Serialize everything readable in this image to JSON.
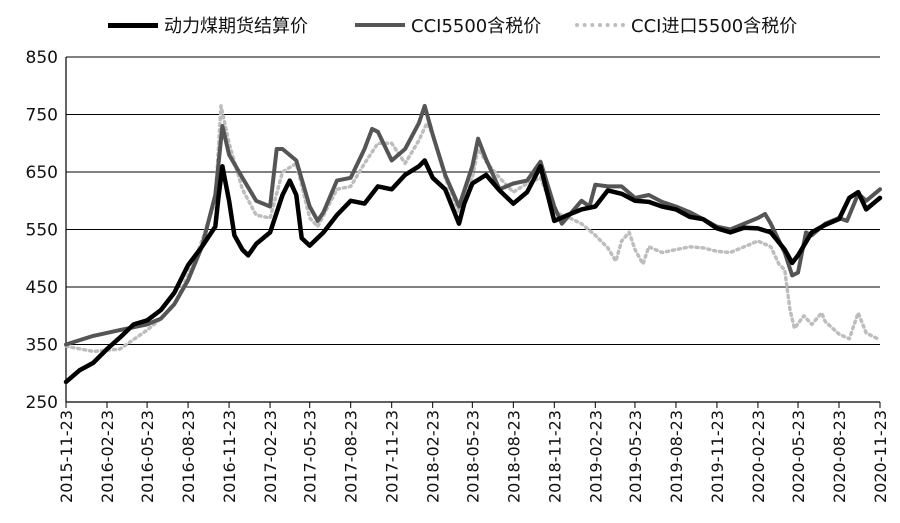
{
  "chart_data": {
    "type": "line",
    "title": "",
    "xlabel": "",
    "ylabel": "",
    "ylim": [
      250,
      850
    ],
    "yticks": [
      250,
      350,
      450,
      550,
      650,
      750,
      850
    ],
    "xlim": [
      "2015-11-23",
      "2020-11-23"
    ],
    "xticks": [
      "2015-11-23",
      "2016-02-23",
      "2016-05-23",
      "2016-08-23",
      "2016-11-23",
      "2017-02-23",
      "2017-05-23",
      "2017-08-23",
      "2017-11-23",
      "2018-02-23",
      "2018-05-23",
      "2018-08-23",
      "2018-11-23",
      "2019-02-23",
      "2019-05-23",
      "2019-08-23",
      "2019-11-23",
      "2020-02-23",
      "2020-05-23",
      "2020-08-23",
      "2020-11-23"
    ],
    "grid": "horizontal",
    "legend": "top",
    "series": [
      {
        "name": "动力煤期货结算价",
        "color": "#000000",
        "style": "solid-thick",
        "points": [
          [
            "2015-11-23",
            285
          ],
          [
            "2015-12-23",
            305
          ],
          [
            "2016-01-23",
            318
          ],
          [
            "2016-02-23",
            342
          ],
          [
            "2016-03-23",
            362
          ],
          [
            "2016-04-23",
            385
          ],
          [
            "2016-05-23",
            392
          ],
          [
            "2016-06-23",
            410
          ],
          [
            "2016-07-23",
            440
          ],
          [
            "2016-08-23",
            488
          ],
          [
            "2016-09-23",
            520
          ],
          [
            "2016-10-23",
            555
          ],
          [
            "2016-10-30",
            605
          ],
          [
            "2016-11-08",
            660
          ],
          [
            "2016-11-13",
            640
          ],
          [
            "2016-11-23",
            600
          ],
          [
            "2016-12-05",
            540
          ],
          [
            "2016-12-23",
            515
          ],
          [
            "2017-01-05",
            505
          ],
          [
            "2017-01-23",
            525
          ],
          [
            "2017-02-23",
            545
          ],
          [
            "2017-03-23",
            610
          ],
          [
            "2017-04-08",
            635
          ],
          [
            "2017-04-23",
            610
          ],
          [
            "2017-05-05",
            535
          ],
          [
            "2017-05-23",
            522
          ],
          [
            "2017-06-23",
            545
          ],
          [
            "2017-07-23",
            575
          ],
          [
            "2017-08-23",
            600
          ],
          [
            "2017-09-23",
            595
          ],
          [
            "2017-10-23",
            625
          ],
          [
            "2017-11-23",
            620
          ],
          [
            "2017-12-23",
            645
          ],
          [
            "2018-01-23",
            660
          ],
          [
            "2018-02-05",
            670
          ],
          [
            "2018-02-23",
            640
          ],
          [
            "2018-03-23",
            620
          ],
          [
            "2018-04-23",
            560
          ],
          [
            "2018-05-05",
            595
          ],
          [
            "2018-05-23",
            630
          ],
          [
            "2018-06-23",
            645
          ],
          [
            "2018-07-23",
            618
          ],
          [
            "2018-08-23",
            595
          ],
          [
            "2018-09-23",
            615
          ],
          [
            "2018-10-23",
            660
          ],
          [
            "2018-11-23",
            565
          ],
          [
            "2018-12-23",
            575
          ],
          [
            "2019-01-23",
            585
          ],
          [
            "2019-02-23",
            590
          ],
          [
            "2019-03-23",
            618
          ],
          [
            "2019-04-23",
            612
          ],
          [
            "2019-05-23",
            600
          ],
          [
            "2019-06-23",
            598
          ],
          [
            "2019-07-23",
            590
          ],
          [
            "2019-08-23",
            585
          ],
          [
            "2019-09-23",
            572
          ],
          [
            "2019-10-23",
            568
          ],
          [
            "2019-11-23",
            552
          ],
          [
            "2019-12-23",
            545
          ],
          [
            "2020-01-23",
            553
          ],
          [
            "2020-02-23",
            552
          ],
          [
            "2020-03-23",
            545
          ],
          [
            "2020-04-23",
            515
          ],
          [
            "2020-05-10",
            492
          ],
          [
            "2020-05-23",
            505
          ],
          [
            "2020-06-23",
            545
          ],
          [
            "2020-07-23",
            558
          ],
          [
            "2020-08-23",
            568
          ],
          [
            "2020-09-15",
            605
          ],
          [
            "2020-10-05",
            615
          ],
          [
            "2020-10-23",
            585
          ],
          [
            "2020-11-23",
            605
          ]
        ]
      },
      {
        "name": "CCI5500含税价",
        "color": "#555555",
        "style": "solid-mid",
        "points": [
          [
            "2015-11-23",
            350
          ],
          [
            "2016-01-23",
            365
          ],
          [
            "2016-03-23",
            375
          ],
          [
            "2016-05-23",
            385
          ],
          [
            "2016-06-23",
            395
          ],
          [
            "2016-07-23",
            420
          ],
          [
            "2016-08-23",
            462
          ],
          [
            "2016-09-23",
            520
          ],
          [
            "2016-10-23",
            610
          ],
          [
            "2016-11-08",
            730
          ],
          [
            "2016-11-23",
            680
          ],
          [
            "2016-12-23",
            640
          ],
          [
            "2017-01-23",
            600
          ],
          [
            "2017-02-23",
            590
          ],
          [
            "2017-03-10",
            690
          ],
          [
            "2017-03-23",
            690
          ],
          [
            "2017-04-23",
            670
          ],
          [
            "2017-05-23",
            590
          ],
          [
            "2017-06-10",
            565
          ],
          [
            "2017-06-23",
            580
          ],
          [
            "2017-07-23",
            635
          ],
          [
            "2017-08-23",
            640
          ],
          [
            "2017-09-23",
            690
          ],
          [
            "2017-10-10",
            725
          ],
          [
            "2017-10-23",
            720
          ],
          [
            "2017-11-23",
            670
          ],
          [
            "2017-12-23",
            690
          ],
          [
            "2018-01-23",
            735
          ],
          [
            "2018-02-05",
            765
          ],
          [
            "2018-02-23",
            715
          ],
          [
            "2018-03-23",
            645
          ],
          [
            "2018-04-23",
            590
          ],
          [
            "2018-05-23",
            660
          ],
          [
            "2018-06-05",
            708
          ],
          [
            "2018-06-23",
            672
          ],
          [
            "2018-07-23",
            620
          ],
          [
            "2018-08-23",
            630
          ],
          [
            "2018-09-23",
            635
          ],
          [
            "2018-10-23",
            668
          ],
          [
            "2018-11-23",
            590
          ],
          [
            "2018-12-10",
            560
          ],
          [
            "2018-12-23",
            572
          ],
          [
            "2019-01-23",
            600
          ],
          [
            "2019-02-10",
            590
          ],
          [
            "2019-02-23",
            628
          ],
          [
            "2019-03-23",
            625
          ],
          [
            "2019-04-23",
            625
          ],
          [
            "2019-05-23",
            605
          ],
          [
            "2019-06-23",
            610
          ],
          [
            "2019-07-23",
            598
          ],
          [
            "2019-08-23",
            590
          ],
          [
            "2019-09-23",
            580
          ],
          [
            "2019-10-23",
            568
          ],
          [
            "2019-11-23",
            555
          ],
          [
            "2019-12-23",
            550
          ],
          [
            "2020-01-23",
            560
          ],
          [
            "2020-02-23",
            570
          ],
          [
            "2020-03-10",
            577
          ],
          [
            "2020-03-23",
            560
          ],
          [
            "2020-04-23",
            510
          ],
          [
            "2020-05-10",
            470
          ],
          [
            "2020-05-23",
            475
          ],
          [
            "2020-06-10",
            545
          ],
          [
            "2020-06-23",
            540
          ],
          [
            "2020-07-23",
            560
          ],
          [
            "2020-08-23",
            570
          ],
          [
            "2020-09-10",
            565
          ],
          [
            "2020-10-05",
            612
          ],
          [
            "2020-10-23",
            600
          ],
          [
            "2020-11-23",
            620
          ]
        ]
      },
      {
        "name": "CCI进口5500含税价",
        "color": "#bdbdbd",
        "style": "dotted",
        "points": [
          [
            "2015-11-23",
            347
          ],
          [
            "2016-01-23",
            338
          ],
          [
            "2016-03-23",
            342
          ],
          [
            "2016-05-23",
            375
          ],
          [
            "2016-06-23",
            395
          ],
          [
            "2016-07-23",
            420
          ],
          [
            "2016-08-23",
            470
          ],
          [
            "2016-09-23",
            530
          ],
          [
            "2016-10-23",
            600
          ],
          [
            "2016-11-05",
            765
          ],
          [
            "2016-11-23",
            700
          ],
          [
            "2016-12-23",
            620
          ],
          [
            "2017-01-23",
            575
          ],
          [
            "2017-02-23",
            570
          ],
          [
            "2017-03-23",
            650
          ],
          [
            "2017-04-23",
            665
          ],
          [
            "2017-05-23",
            570
          ],
          [
            "2017-06-10",
            555
          ],
          [
            "2017-07-23",
            620
          ],
          [
            "2017-08-23",
            625
          ],
          [
            "2017-09-23",
            665
          ],
          [
            "2017-10-23",
            700
          ],
          [
            "2017-11-23",
            700
          ],
          [
            "2017-12-23",
            665
          ],
          [
            "2018-01-23",
            705
          ],
          [
            "2018-02-10",
            735
          ],
          [
            "2018-02-23",
            715
          ],
          [
            "2018-03-23",
            640
          ],
          [
            "2018-04-23",
            580
          ],
          [
            "2018-05-23",
            640
          ],
          [
            "2018-06-05",
            690
          ],
          [
            "2018-06-23",
            668
          ],
          [
            "2018-07-23",
            640
          ],
          [
            "2018-08-23",
            615
          ],
          [
            "2018-09-23",
            630
          ],
          [
            "2018-10-23",
            640
          ],
          [
            "2018-11-23",
            580
          ],
          [
            "2018-12-23",
            572
          ],
          [
            "2019-01-23",
            560
          ],
          [
            "2019-02-23",
            540
          ],
          [
            "2019-03-23",
            518
          ],
          [
            "2019-04-10",
            495
          ],
          [
            "2019-04-23",
            530
          ],
          [
            "2019-05-10",
            545
          ],
          [
            "2019-05-23",
            515
          ],
          [
            "2019-06-10",
            490
          ],
          [
            "2019-06-23",
            520
          ],
          [
            "2019-07-23",
            510
          ],
          [
            "2019-08-23",
            515
          ],
          [
            "2019-09-23",
            520
          ],
          [
            "2019-10-23",
            518
          ],
          [
            "2019-11-23",
            512
          ],
          [
            "2019-12-23",
            510
          ],
          [
            "2020-01-23",
            520
          ],
          [
            "2020-02-23",
            530
          ],
          [
            "2020-03-23",
            520
          ],
          [
            "2020-04-10",
            490
          ],
          [
            "2020-04-23",
            480
          ],
          [
            "2020-05-05",
            410
          ],
          [
            "2020-05-15",
            378
          ],
          [
            "2020-06-05",
            400
          ],
          [
            "2020-06-23",
            385
          ],
          [
            "2020-07-15",
            405
          ],
          [
            "2020-07-23",
            390
          ],
          [
            "2020-08-23",
            368
          ],
          [
            "2020-09-15",
            360
          ],
          [
            "2020-10-05",
            405
          ],
          [
            "2020-10-23",
            370
          ],
          [
            "2020-11-23",
            358
          ]
        ]
      }
    ]
  }
}
